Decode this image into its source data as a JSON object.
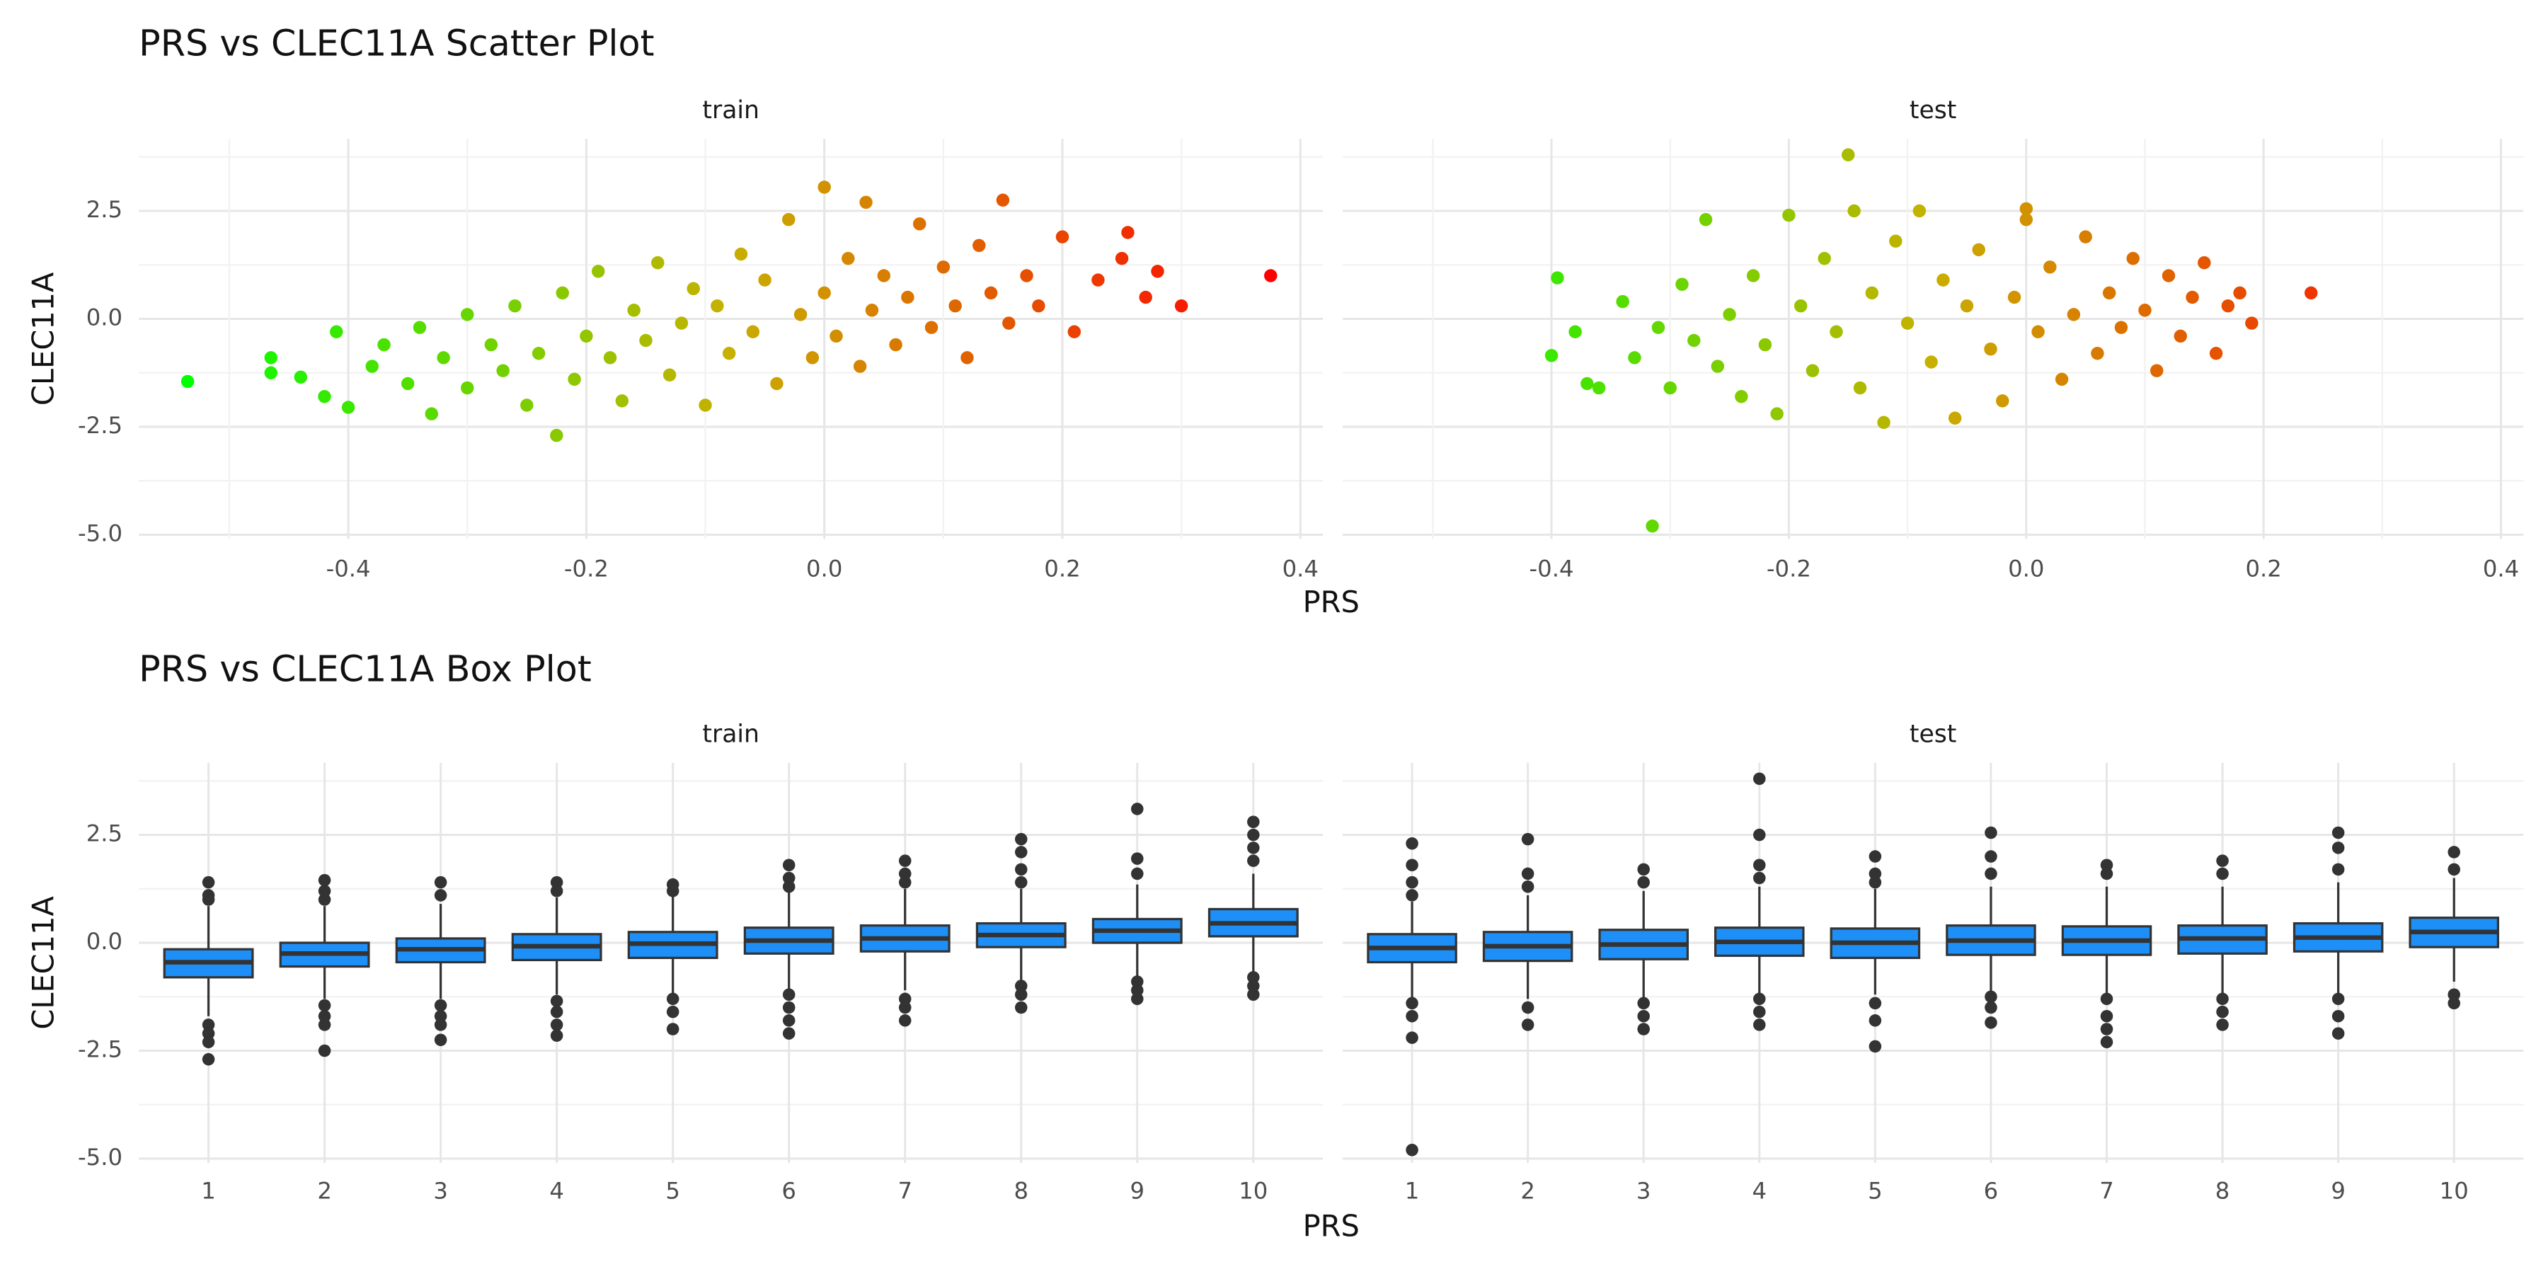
{
  "chart_data": [
    {
      "type": "scatter",
      "title": "PRS vs CLEC11A Scatter Plot",
      "x_label": "PRS",
      "y_label": "CLEC11A",
      "color_scale": [
        "#00ff00",
        "#c8b000",
        "#ff0000"
      ],
      "xlim": [
        -0.576,
        0.419
      ],
      "xticks": [
        -0.4,
        -0.2,
        {
          "value": 0,
          "label": "0.0"
        },
        0.2,
        0.4
      ],
      "ylim": [
        -5.1,
        4.17
      ],
      "yticks": [
        {
          "value": -5,
          "label": "-5.0"
        },
        -2.5,
        {
          "value": 0,
          "label": "0.0"
        },
        2.5
      ],
      "grid": true,
      "panels": [
        {
          "name": "train",
          "x": [
            -0.535,
            -0.465,
            -0.465,
            -0.44,
            -0.42,
            -0.4,
            -0.41,
            -0.38,
            -0.37,
            -0.35,
            -0.34,
            -0.33,
            -0.32,
            -0.3,
            -0.3,
            -0.28,
            -0.27,
            -0.26,
            -0.25,
            -0.24,
            -0.225,
            -0.22,
            -0.21,
            -0.2,
            -0.19,
            -0.18,
            -0.17,
            -0.16,
            -0.15,
            -0.14,
            -0.13,
            -0.12,
            -0.11,
            -0.1,
            -0.09,
            -0.08,
            -0.07,
            -0.06,
            -0.05,
            -0.04,
            -0.03,
            -0.02,
            -0.01,
            0.0,
            0.0,
            0.01,
            0.02,
            0.03,
            0.035,
            0.04,
            0.05,
            0.06,
            0.07,
            0.08,
            0.09,
            0.1,
            0.11,
            0.12,
            0.13,
            0.14,
            0.15,
            0.155,
            0.17,
            0.18,
            0.2,
            0.21,
            0.23,
            0.25,
            0.255,
            0.27,
            0.28,
            0.3,
            0.375
          ],
          "y": [
            -1.45,
            -0.9,
            -1.25,
            -1.35,
            -1.8,
            -2.05,
            -0.3,
            -1.1,
            -0.6,
            -1.5,
            -0.2,
            -2.2,
            -0.9,
            0.1,
            -1.6,
            -0.6,
            -1.2,
            0.3,
            -2.0,
            -0.8,
            -2.7,
            0.6,
            -1.4,
            -0.4,
            1.1,
            -0.9,
            -1.9,
            0.2,
            -0.5,
            1.3,
            -1.3,
            -0.1,
            0.7,
            -2.0,
            0.3,
            -0.8,
            1.5,
            -0.3,
            0.9,
            -1.5,
            2.3,
            0.1,
            -0.9,
            3.05,
            0.6,
            -0.4,
            1.4,
            -1.1,
            2.7,
            0.2,
            1.0,
            -0.6,
            0.5,
            2.2,
            -0.2,
            1.2,
            0.3,
            -0.9,
            1.7,
            0.6,
            2.75,
            -0.1,
            1.0,
            0.3,
            1.9,
            -0.3,
            0.9,
            1.4,
            2.0,
            0.5,
            1.1,
            0.3,
            1.0
          ]
        },
        {
          "name": "test",
          "x": [
            -0.395,
            -0.4,
            -0.38,
            -0.37,
            -0.36,
            -0.34,
            -0.33,
            -0.315,
            -0.31,
            -0.3,
            -0.29,
            -0.28,
            -0.27,
            -0.26,
            -0.25,
            -0.24,
            -0.23,
            -0.22,
            -0.21,
            -0.2,
            -0.19,
            -0.18,
            -0.17,
            -0.16,
            -0.15,
            -0.145,
            -0.14,
            -0.13,
            -0.12,
            -0.11,
            -0.1,
            -0.09,
            -0.08,
            -0.07,
            -0.06,
            -0.05,
            -0.04,
            -0.03,
            -0.02,
            -0.01,
            0.0,
            0.0,
            0.01,
            0.02,
            0.03,
            0.04,
            0.05,
            0.06,
            0.07,
            0.08,
            0.09,
            0.1,
            0.11,
            0.12,
            0.13,
            0.14,
            0.15,
            0.16,
            0.17,
            0.18,
            0.19,
            0.24
          ],
          "y": [
            0.95,
            -0.85,
            -0.3,
            -1.5,
            -1.6,
            0.4,
            -0.9,
            -4.8,
            -0.2,
            -1.6,
            0.8,
            -0.5,
            2.3,
            -1.1,
            0.1,
            -1.8,
            1.0,
            -0.6,
            -2.2,
            2.4,
            0.3,
            -1.2,
            1.4,
            -0.3,
            3.8,
            2.5,
            -1.6,
            0.6,
            -2.4,
            1.8,
            -0.1,
            2.5,
            -1.0,
            0.9,
            -2.3,
            0.3,
            1.6,
            -0.7,
            -1.9,
            0.5,
            2.55,
            2.3,
            -0.3,
            1.2,
            -1.4,
            0.1,
            1.9,
            -0.8,
            0.6,
            -0.2,
            1.4,
            0.2,
            -1.2,
            1.0,
            -0.4,
            0.5,
            1.3,
            -0.8,
            0.3,
            0.6,
            -0.1,
            0.6
          ]
        }
      ]
    },
    {
      "type": "box",
      "title": "PRS vs CLEC11A Box Plot",
      "x_label": "PRS",
      "y_label": "CLEC11A",
      "color": "#1e8ff7",
      "categories": [
        "1",
        "2",
        "3",
        "4",
        "5",
        "6",
        "7",
        "8",
        "9",
        "10"
      ],
      "ylim": [
        -5.1,
        4.17
      ],
      "yticks": [
        {
          "value": -5,
          "label": "-5.0"
        },
        -2.5,
        {
          "value": 0,
          "label": "0.0"
        },
        2.5
      ],
      "grid": true,
      "panels": [
        {
          "name": "train",
          "whisker_low": [
            -1.7,
            -1.3,
            -1.3,
            -1.2,
            -1.2,
            -1.1,
            -1.1,
            -0.95,
            -0.8,
            -0.7
          ],
          "q1": [
            -0.8,
            -0.55,
            -0.45,
            -0.4,
            -0.35,
            -0.25,
            -0.2,
            -0.1,
            0.0,
            0.15
          ],
          "median": [
            -0.45,
            -0.25,
            -0.15,
            -0.08,
            -0.02,
            0.05,
            0.1,
            0.18,
            0.28,
            0.45
          ],
          "q3": [
            -0.15,
            0.0,
            0.1,
            0.2,
            0.25,
            0.35,
            0.4,
            0.45,
            0.55,
            0.78
          ],
          "whisker_high": [
            0.85,
            0.85,
            0.9,
            1.05,
            1.1,
            1.2,
            1.25,
            1.25,
            1.35,
            1.6
          ],
          "outliers": [
            [
              1.4,
              1.1,
              1.0,
              -1.9,
              -2.1,
              -2.3,
              -2.7
            ],
            [
              1.45,
              1.2,
              1.0,
              -1.45,
              -1.7,
              -1.9,
              -2.5
            ],
            [
              1.4,
              1.1,
              -1.45,
              -1.7,
              -1.9,
              -2.25
            ],
            [
              1.4,
              1.2,
              -1.35,
              -1.6,
              -1.9,
              -2.15
            ],
            [
              1.35,
              1.2,
              -1.3,
              -1.6,
              -2.0
            ],
            [
              1.8,
              1.5,
              1.3,
              -1.2,
              -1.5,
              -1.8,
              -2.1
            ],
            [
              1.9,
              1.6,
              1.4,
              -1.3,
              -1.5,
              -1.8
            ],
            [
              2.4,
              2.1,
              1.7,
              1.4,
              -1.0,
              -1.2,
              -1.5
            ],
            [
              3.1,
              1.95,
              1.6,
              -0.9,
              -1.1,
              -1.3
            ],
            [
              2.8,
              2.5,
              2.2,
              1.9,
              -0.8,
              -1.0,
              -1.2
            ]
          ]
        },
        {
          "name": "test",
          "whisker_low": [
            -1.3,
            -1.3,
            -1.3,
            -1.2,
            -1.2,
            -1.15,
            -1.2,
            -1.2,
            -1.2,
            -0.9
          ],
          "q1": [
            -0.45,
            -0.42,
            -0.38,
            -0.3,
            -0.35,
            -0.28,
            -0.28,
            -0.25,
            -0.2,
            -0.1
          ],
          "median": [
            -0.12,
            -0.08,
            -0.04,
            0.02,
            0.0,
            0.05,
            0.05,
            0.1,
            0.12,
            0.25
          ],
          "q3": [
            0.2,
            0.25,
            0.3,
            0.35,
            0.33,
            0.4,
            0.38,
            0.4,
            0.45,
            0.58
          ],
          "whisker_high": [
            0.95,
            1.1,
            1.2,
            1.3,
            1.25,
            1.3,
            1.3,
            1.3,
            1.4,
            1.5
          ],
          "outliers": [
            [
              2.3,
              1.8,
              1.4,
              1.1,
              -1.4,
              -1.7,
              -2.2,
              -4.8
            ],
            [
              2.4,
              1.6,
              1.3,
              -1.5,
              -1.9
            ],
            [
              1.7,
              1.4,
              -1.4,
              -1.7,
              -2.0
            ],
            [
              3.8,
              2.5,
              1.8,
              1.5,
              -1.3,
              -1.6,
              -1.9
            ],
            [
              2.0,
              1.6,
              1.4,
              -1.4,
              -1.8,
              -2.4
            ],
            [
              2.55,
              2.0,
              1.6,
              -1.25,
              -1.5,
              -1.85
            ],
            [
              1.8,
              1.6,
              -1.3,
              -1.7,
              -2.0,
              -2.3
            ],
            [
              1.9,
              1.6,
              -1.3,
              -1.6,
              -1.9
            ],
            [
              2.55,
              2.2,
              1.7,
              -1.3,
              -1.7,
              -2.1
            ],
            [
              2.1,
              1.7,
              -1.2,
              -1.4
            ]
          ]
        }
      ]
    }
  ]
}
